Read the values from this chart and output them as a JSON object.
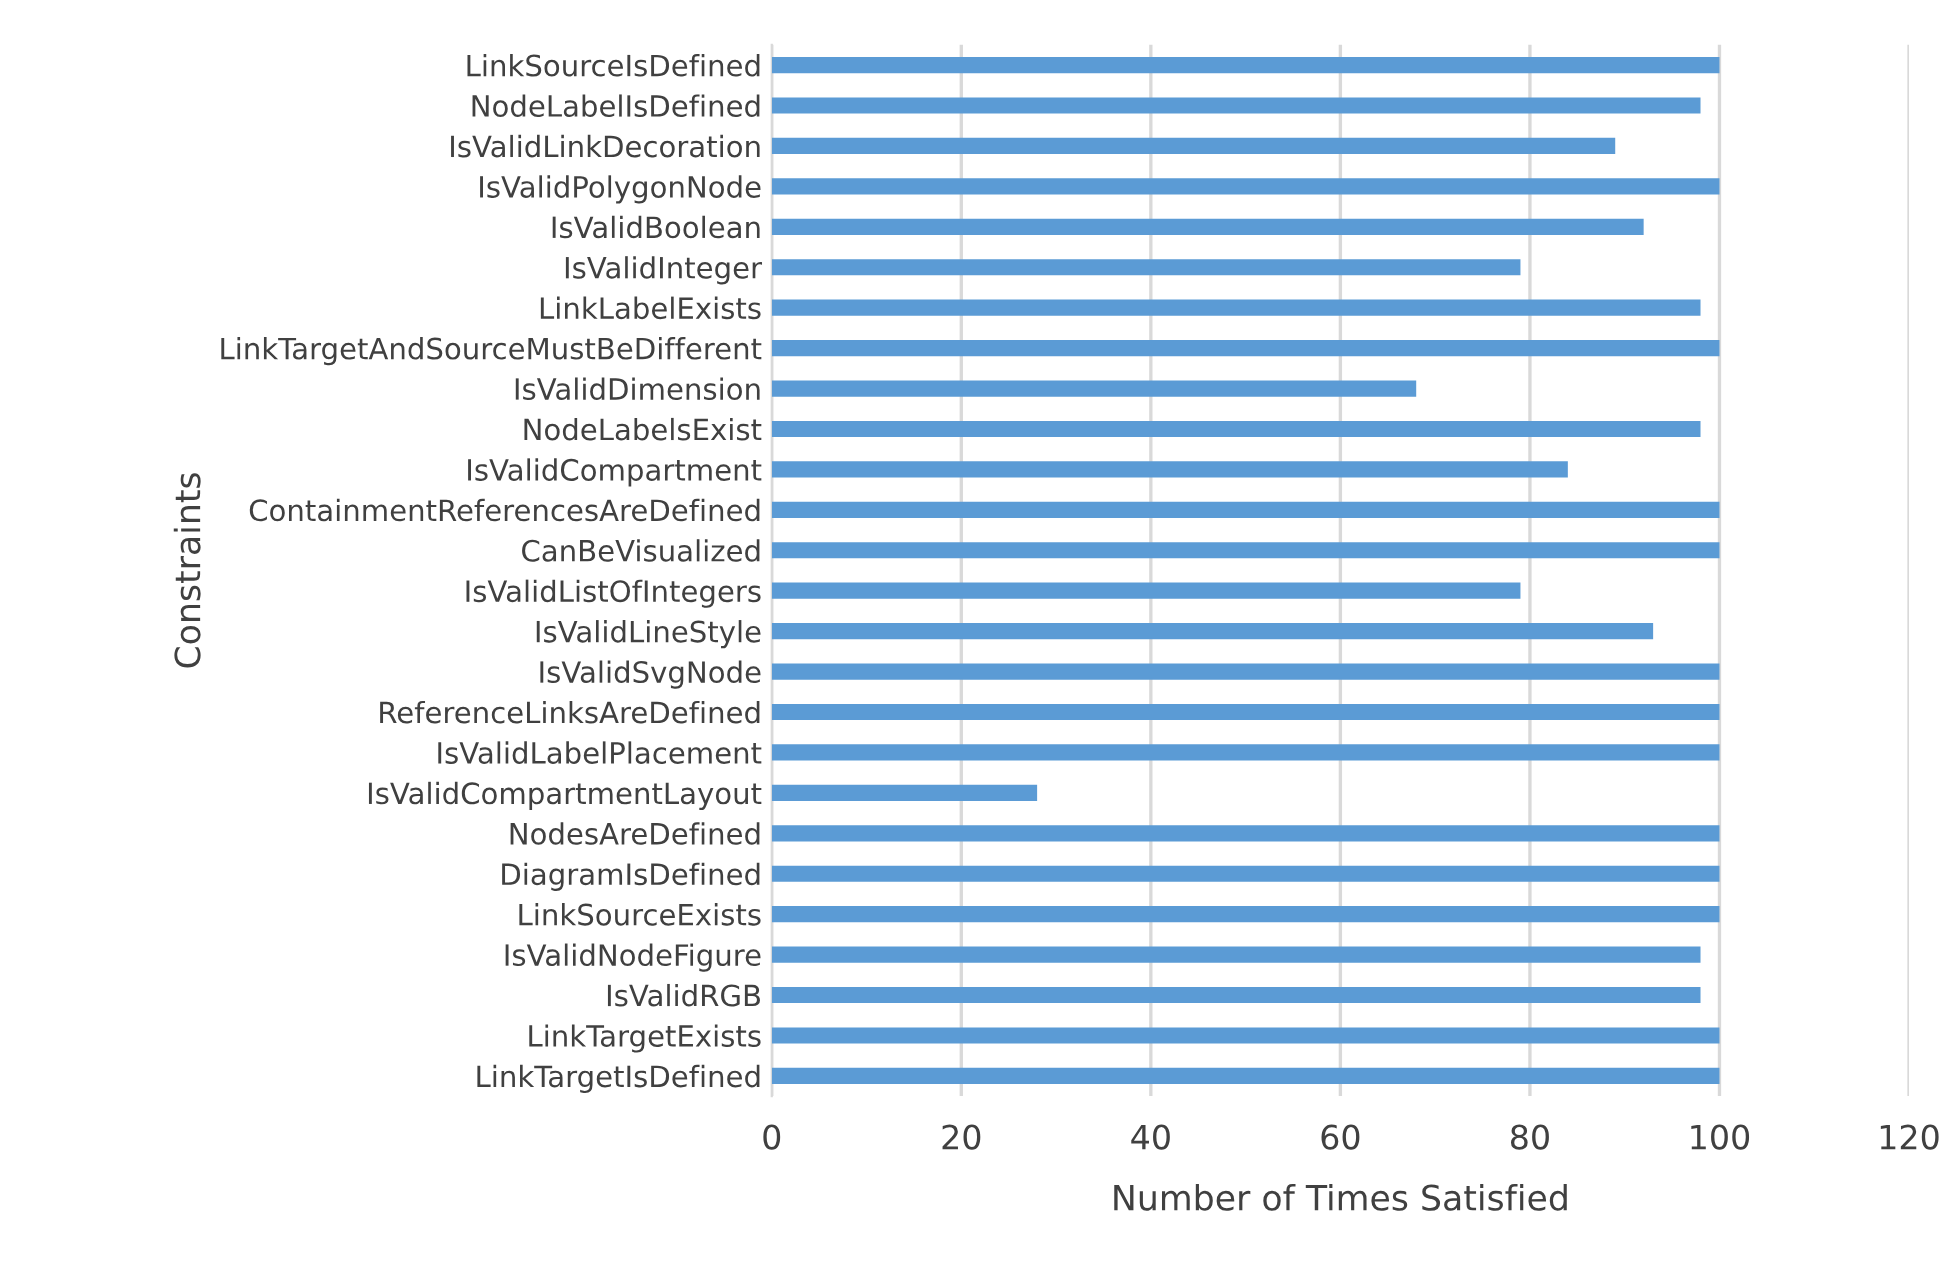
{
  "chart_data": {
    "type": "bar",
    "orientation": "horizontal",
    "categories": [
      "LinkSourceIsDefined",
      "NodeLabelIsDefined",
      "IsValidLinkDecoration",
      "IsValidPolygonNode",
      "IsValidBoolean",
      "IsValidInteger",
      "LinkLabelExists",
      "LinkTargetAndSourceMustBeDifferent",
      "IsValidDimension",
      "NodeLabelsExist",
      "IsValidCompartment",
      "ContainmentReferencesAreDefined",
      "CanBeVisualized",
      "IsValidListOfIntegers",
      "IsValidLineStyle",
      "IsValidSvgNode",
      "ReferenceLinksAreDefined",
      "IsValidLabelPlacement",
      "IsValidCompartmentLayout",
      "NodesAreDefined",
      "DiagramIsDefined",
      "LinkSourceExists",
      "IsValidNodeFigure",
      "IsValidRGB",
      "LinkTargetExists",
      "LinkTargetIsDefined"
    ],
    "values": [
      100,
      98,
      89,
      100,
      92,
      79,
      98,
      100,
      68,
      98,
      84,
      100,
      100,
      79,
      93,
      100,
      100,
      100,
      28,
      100,
      100,
      100,
      98,
      98,
      100,
      100
    ],
    "color": "#5b9bd5",
    "xlim": [
      0,
      120
    ],
    "xticks": [
      0,
      20,
      40,
      60,
      80,
      100,
      120
    ],
    "xlabel": "Number of Times Satisfied",
    "ylabel": "Constraints",
    "grid": "x"
  }
}
